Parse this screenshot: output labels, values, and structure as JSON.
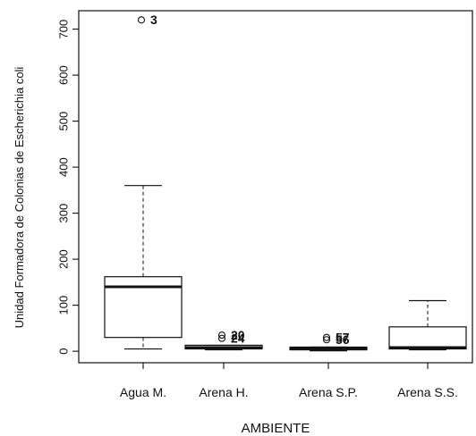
{
  "chart_data": {
    "type": "boxplot",
    "title": "",
    "xlabel": "AMBIENTE",
    "ylabel": "Unidad Formadora de Colonias de Escherichia coli",
    "ylim": [
      -25,
      740
    ],
    "yticks": [
      0,
      100,
      200,
      300,
      400,
      500,
      600,
      700
    ],
    "grid": false,
    "categories": [
      "Agua M.",
      "Arena H.",
      "Arena S.P.",
      "Arena S.S."
    ],
    "boxes": [
      {
        "category": "Agua M.",
        "whisker_low": 5,
        "q1": 30,
        "median": 140,
        "q3": 162,
        "whisker_high": 360,
        "outliers": [
          {
            "value": 720,
            "label": "3"
          }
        ]
      },
      {
        "category": "Arena H.",
        "whisker_low": 3,
        "q1": 5,
        "median": 8,
        "q3": 13,
        "whisker_high": 13,
        "outliers": [
          {
            "value": 35,
            "label": "20"
          },
          {
            "value": 28,
            "label": "24"
          }
        ]
      },
      {
        "category": "Arena S.P.",
        "whisker_low": 1,
        "q1": 3,
        "median": 5,
        "q3": 9,
        "whisker_high": 9,
        "outliers": [
          {
            "value": 30,
            "label": "57"
          },
          {
            "value": 25,
            "label": "56"
          }
        ]
      },
      {
        "category": "Arena S.S.",
        "whisker_low": 3,
        "q1": 5,
        "median": 8,
        "q3": 53,
        "whisker_high": 110,
        "outliers": []
      }
    ]
  }
}
